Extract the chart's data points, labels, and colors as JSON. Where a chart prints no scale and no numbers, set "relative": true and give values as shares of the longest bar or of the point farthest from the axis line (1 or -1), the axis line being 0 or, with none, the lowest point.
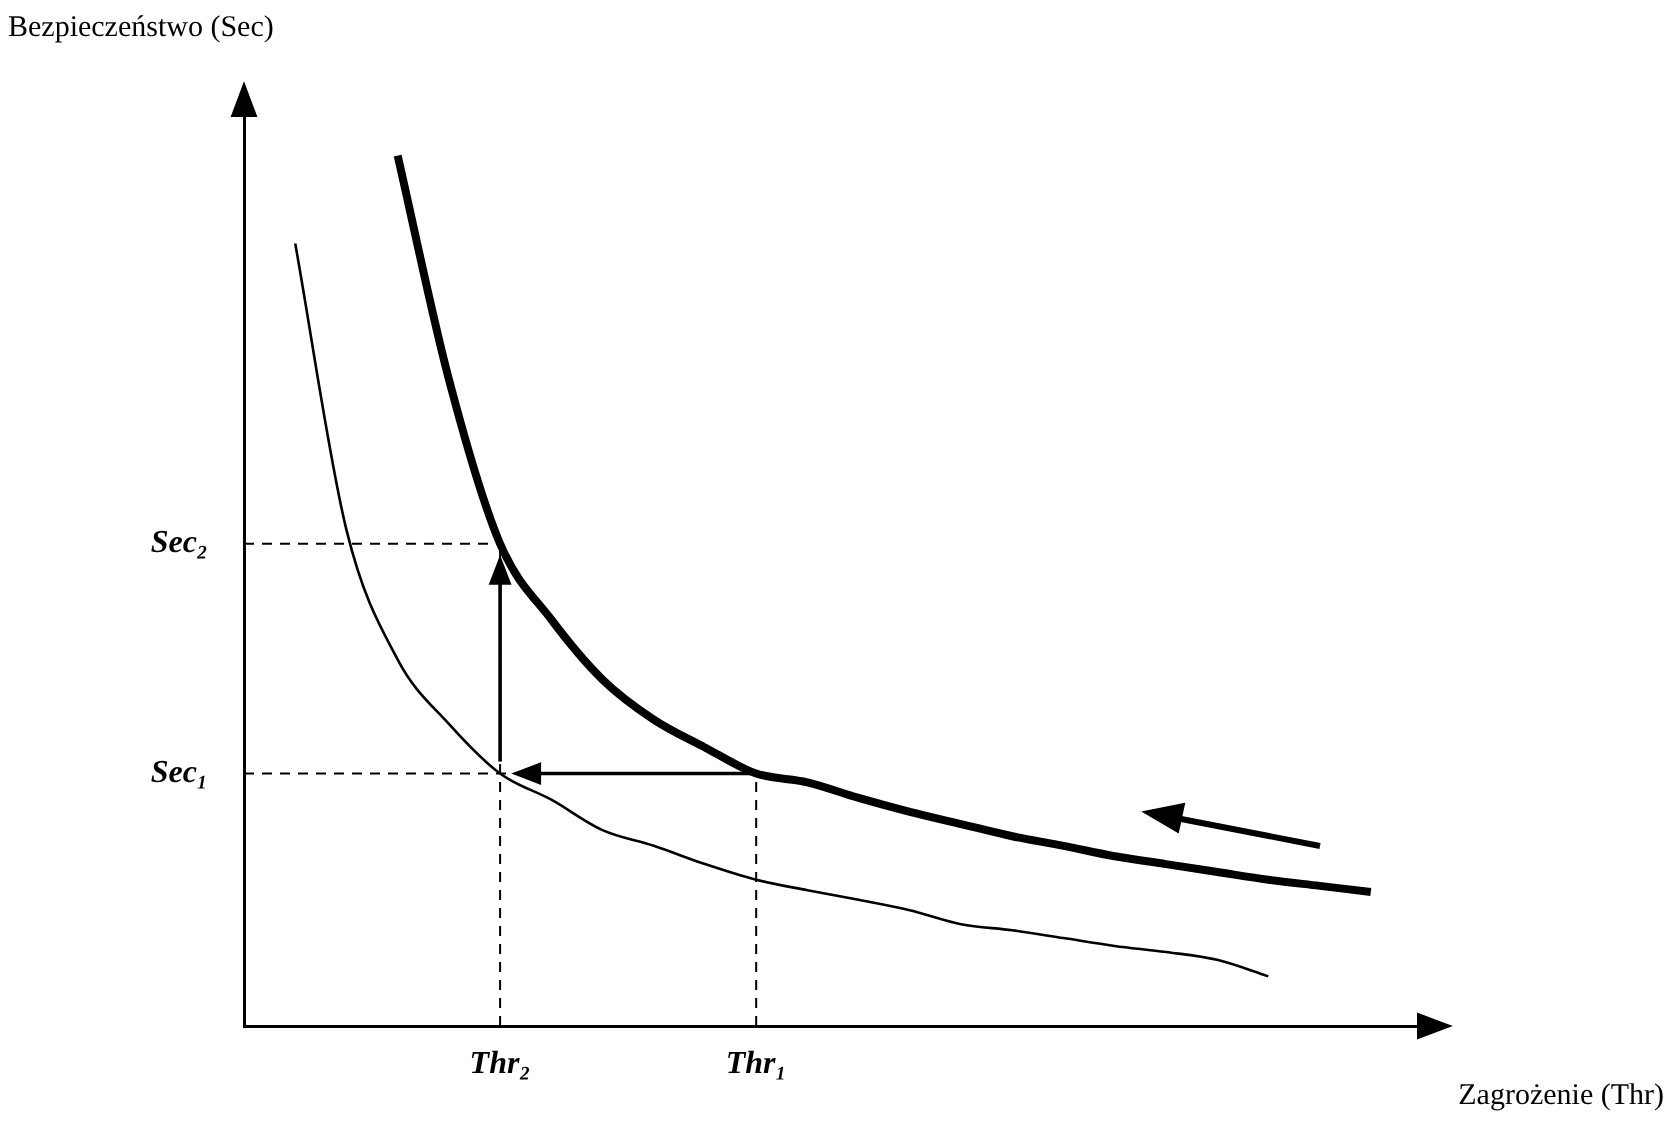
{
  "chart_data": {
    "type": "line",
    "relative": true,
    "xlabel": "Zagrożenie (Thr)",
    "ylabel": "Bezpieczeństwo (Sec)",
    "categories": [
      null,
      null,
      null,
      null,
      null,
      "Thr₂",
      null,
      null,
      null,
      null,
      "Thr₁",
      null,
      null,
      null,
      null,
      null,
      null,
      null,
      null,
      null,
      null,
      null,
      null,
      null
    ],
    "tick_labels": "x",
    "grid": false,
    "legend": false,
    "marker": "none",
    "series": [
      {
        "color": "#000000",
        "values": [
          null,
          null,
          null,
          1.0,
          0.743,
          0.554,
          0.467,
          0.398,
          0.352,
          0.32,
          0.29,
          0.28,
          0.262,
          0.246,
          0.232,
          0.218,
          0.207,
          0.195,
          0.186,
          0.177,
          0.168,
          0.161,
          0.154,
          null
        ]
      },
      {
        "color": "#000000",
        "values": [
          null,
          0.899,
          0.57,
          0.421,
          0.347,
          0.29,
          0.26,
          0.225,
          0.207,
          0.186,
          0.168,
          0.156,
          0.145,
          0.133,
          0.117,
          0.11,
          0.101,
          0.092,
          0.085,
          0.076,
          0.057,
          null,
          null,
          null
        ]
      }
    ],
    "ref_lines": [
      {
        "axis": "y",
        "value": 0.554,
        "label": "Sec₂",
        "line_style": "dashed"
      },
      {
        "axis": "y",
        "value": 0.29,
        "label": "Sec₁",
        "line_style": "dashed"
      },
      {
        "axis": "x",
        "value": "Thr₂",
        "line_style": "dashed"
      },
      {
        "axis": "x",
        "value": "Thr₁",
        "line_style": "dashed"
      }
    ]
  }
}
